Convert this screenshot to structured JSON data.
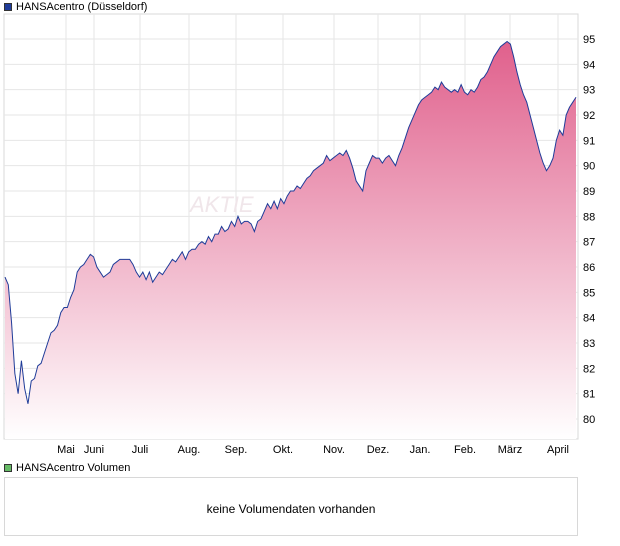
{
  "legend": {
    "price_label": "HANSAcentro (Düsseldorf)",
    "price_color": "#1f3c99",
    "volume_label": "HANSAcentro Volumen",
    "volume_color": "#66bb66"
  },
  "volume": {
    "message": "keine Volumendaten vorhanden"
  },
  "chart_data": {
    "type": "area",
    "title": "",
    "xlabel": "",
    "ylabel": "",
    "ylim": [
      79.2,
      95.9
    ],
    "y_ticks": [
      80,
      81,
      82,
      83,
      84,
      85,
      86,
      87,
      88,
      89,
      90,
      91,
      92,
      93,
      94,
      95
    ],
    "x_ticks": [
      "Mai",
      "Juni",
      "Juli",
      "Aug.",
      "Sep.",
      "Okt.",
      "Nov.",
      "Dez.",
      "Jan.",
      "Feb.",
      "März",
      "April"
    ],
    "grid": true,
    "line_color": "#1f3c99",
    "fill_color_top": "#e0608c",
    "fill_color_bottom": "#ffffff",
    "series": [
      {
        "values": [
          85.6,
          85.3,
          83.8,
          81.8,
          81.0,
          82.3,
          81.2,
          80.6,
          81.5,
          81.6,
          82.1,
          82.2,
          82.6,
          83.0,
          83.4,
          83.5,
          83.7,
          84.2,
          84.4,
          84.4,
          84.8,
          85.1,
          85.8,
          86.0,
          86.1,
          86.3,
          86.5,
          86.4,
          86.0,
          85.8,
          85.6,
          85.7,
          85.8,
          86.1,
          86.2,
          86.3,
          86.3,
          86.3,
          86.3,
          86.1,
          85.8,
          85.6,
          85.8,
          85.5,
          85.8,
          85.4,
          85.6,
          85.8,
          85.7,
          85.9,
          86.1,
          86.3,
          86.2,
          86.4,
          86.6,
          86.3,
          86.6,
          86.7,
          86.7,
          86.9,
          87.0,
          86.9,
          87.2,
          87.0,
          87.3,
          87.3,
          87.6,
          87.4,
          87.5,
          87.8,
          87.6,
          88.0,
          87.7,
          87.8,
          87.8,
          87.7,
          87.4,
          87.8,
          87.9,
          88.2,
          88.5,
          88.3,
          88.6,
          88.3,
          88.7,
          88.5,
          88.8,
          89.0,
          89.0,
          89.2,
          89.1,
          89.3,
          89.5,
          89.6,
          89.8,
          89.9,
          90.0,
          90.1,
          90.4,
          90.2,
          90.3,
          90.4,
          90.5,
          90.4,
          90.6,
          90.3,
          89.9,
          89.4,
          89.2,
          89.0,
          89.8,
          90.1,
          90.4,
          90.3,
          90.3,
          90.1,
          90.3,
          90.4,
          90.2,
          90.0,
          90.4,
          90.7,
          91.1,
          91.5,
          91.8,
          92.1,
          92.4,
          92.6,
          92.7,
          92.8,
          92.9,
          93.1,
          93.0,
          93.3,
          93.1,
          93.0,
          92.9,
          93.0,
          92.9,
          93.2,
          92.9,
          92.8,
          93.0,
          92.9,
          93.1,
          93.4,
          93.5,
          93.7,
          94.0,
          94.3,
          94.5,
          94.7,
          94.8,
          94.9,
          94.8,
          94.3,
          93.7,
          93.2,
          92.8,
          92.5,
          92.0,
          91.5,
          91.0,
          90.5,
          90.1,
          89.8,
          90.0,
          90.3,
          91.0,
          91.4,
          91.2,
          92.0,
          92.3,
          92.5,
          92.7
        ]
      }
    ]
  }
}
